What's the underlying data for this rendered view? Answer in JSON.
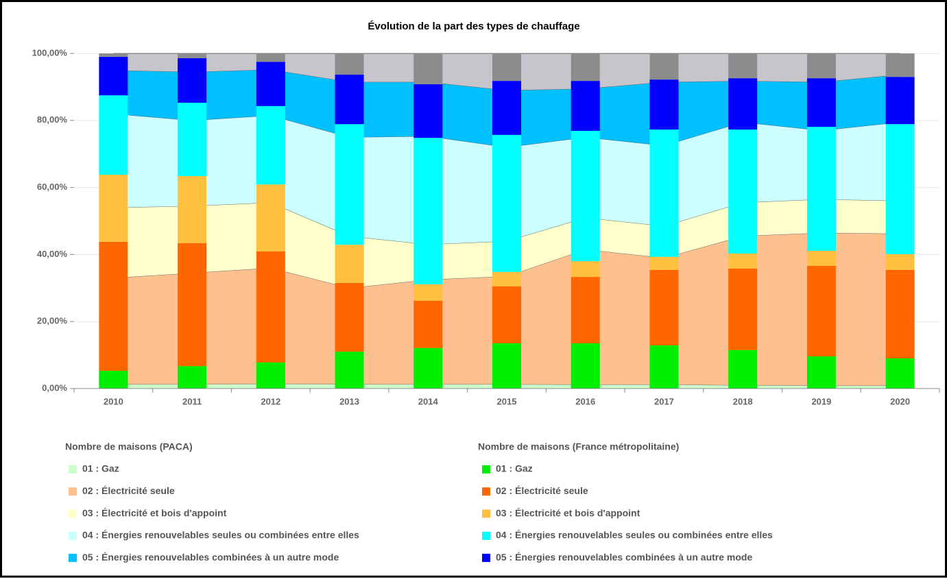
{
  "chart_data": {
    "type": "combo",
    "title": "Évolution de la part des types de chauffage",
    "categories": [
      "2010",
      "2011",
      "2012",
      "2013",
      "2014",
      "2015",
      "2016",
      "2017",
      "2018",
      "2019",
      "2020"
    ],
    "ylim": [
      0,
      100
    ],
    "yticks": [
      {
        "value": 0,
        "label": "0,00%"
      },
      {
        "value": 20,
        "label": "20,00%"
      },
      {
        "value": 40,
        "label": "40,00%"
      },
      {
        "value": 60,
        "label": "60,00%"
      },
      {
        "value": 80,
        "label": "80,00%"
      },
      {
        "value": 100,
        "label": "100,00%"
      }
    ],
    "grid": true,
    "area_legend_title": "Nombre de maisons (PACA)",
    "bar_legend_title": "Nombre de maisons (France métropolitaine)",
    "area_series": [
      {
        "name": "01 : Gaz",
        "color": "#ccffcc",
        "values": [
          1.3,
          1.3,
          1.4,
          1.3,
          1.3,
          1.3,
          1.2,
          1.2,
          1.0,
          0.9,
          0.9
        ]
      },
      {
        "name": "02 : Électricité seule",
        "color": "#ffc090",
        "values": [
          31.7,
          33.2,
          34.6,
          28.7,
          31.2,
          32.2,
          40.3,
          37.8,
          44.5,
          45.6,
          45.3
        ]
      },
      {
        "name": "03 : Électricité et bois d'appoint",
        "color": "#ffffcc",
        "values": [
          21,
          20,
          19.5,
          15.5,
          10.5,
          10.5,
          9.5,
          9.5,
          10,
          10,
          9.8
        ]
      },
      {
        "name": "04 : Énergies renouvelables seules ou combinées entre elles",
        "color": "#ccffff",
        "values": [
          28,
          25.5,
          26,
          29.5,
          32.3,
          28,
          24,
          24,
          24,
          20.5,
          23.5
        ]
      },
      {
        "name": "05 : Énergies renouvelables combinées à un autre mode",
        "color": "#00c0ff",
        "values": [
          13,
          14.5,
          13.7,
          16.5,
          16.2,
          17,
          14.5,
          19,
          12.3,
          14.5,
          14.2
        ]
      },
      {
        "color": "#c8c4cc",
        "values": [
          5.0,
          5.5,
          4.8,
          8.5,
          8.5,
          11,
          10.5,
          8.5,
          8.2,
          8.5,
          6.3
        ]
      }
    ],
    "bar_series": [
      {
        "name": "01 : Gaz",
        "color": "#00ee00",
        "values": [
          5.3,
          6.7,
          7.8,
          11.0,
          12.1,
          13.5,
          13.5,
          12.9,
          11.5,
          9.6,
          9.0
        ]
      },
      {
        "name": "02 : Électricité seule",
        "color": "#ff6600",
        "values": [
          38.5,
          36.7,
          33.1,
          20.5,
          14.1,
          17.0,
          19.8,
          22.5,
          24.3,
          27.0,
          26.4
        ]
      },
      {
        "name": "03 : Électricité et bois d'appoint",
        "color": "#ffc040",
        "values": [
          20.0,
          20.0,
          20.0,
          11.4,
          4.9,
          4.3,
          4.7,
          3.9,
          4.5,
          4.5,
          4.7
        ]
      },
      {
        "name": "04 : Énergies renouvelables seules ou combinées entre elles",
        "color": "#00ffff",
        "values": [
          23.7,
          21.9,
          23.4,
          36.0,
          43.7,
          40.9,
          38.9,
          38.0,
          37.0,
          37.0,
          38.8
        ]
      },
      {
        "name": "05 : Énergies renouvelables combinées à un autre mode",
        "color": "#0000ff",
        "values": [
          11.5,
          13.3,
          13.2,
          14.8,
          16.0,
          16.1,
          14.9,
          14.9,
          15.3,
          14.5,
          14.1
        ]
      },
      {
        "color": "#8c8c8c",
        "values": [
          1.0,
          1.4,
          2.5,
          6.3,
          9.2,
          8.2,
          8.2,
          7.8,
          7.4,
          7.4,
          7.0
        ]
      }
    ]
  }
}
